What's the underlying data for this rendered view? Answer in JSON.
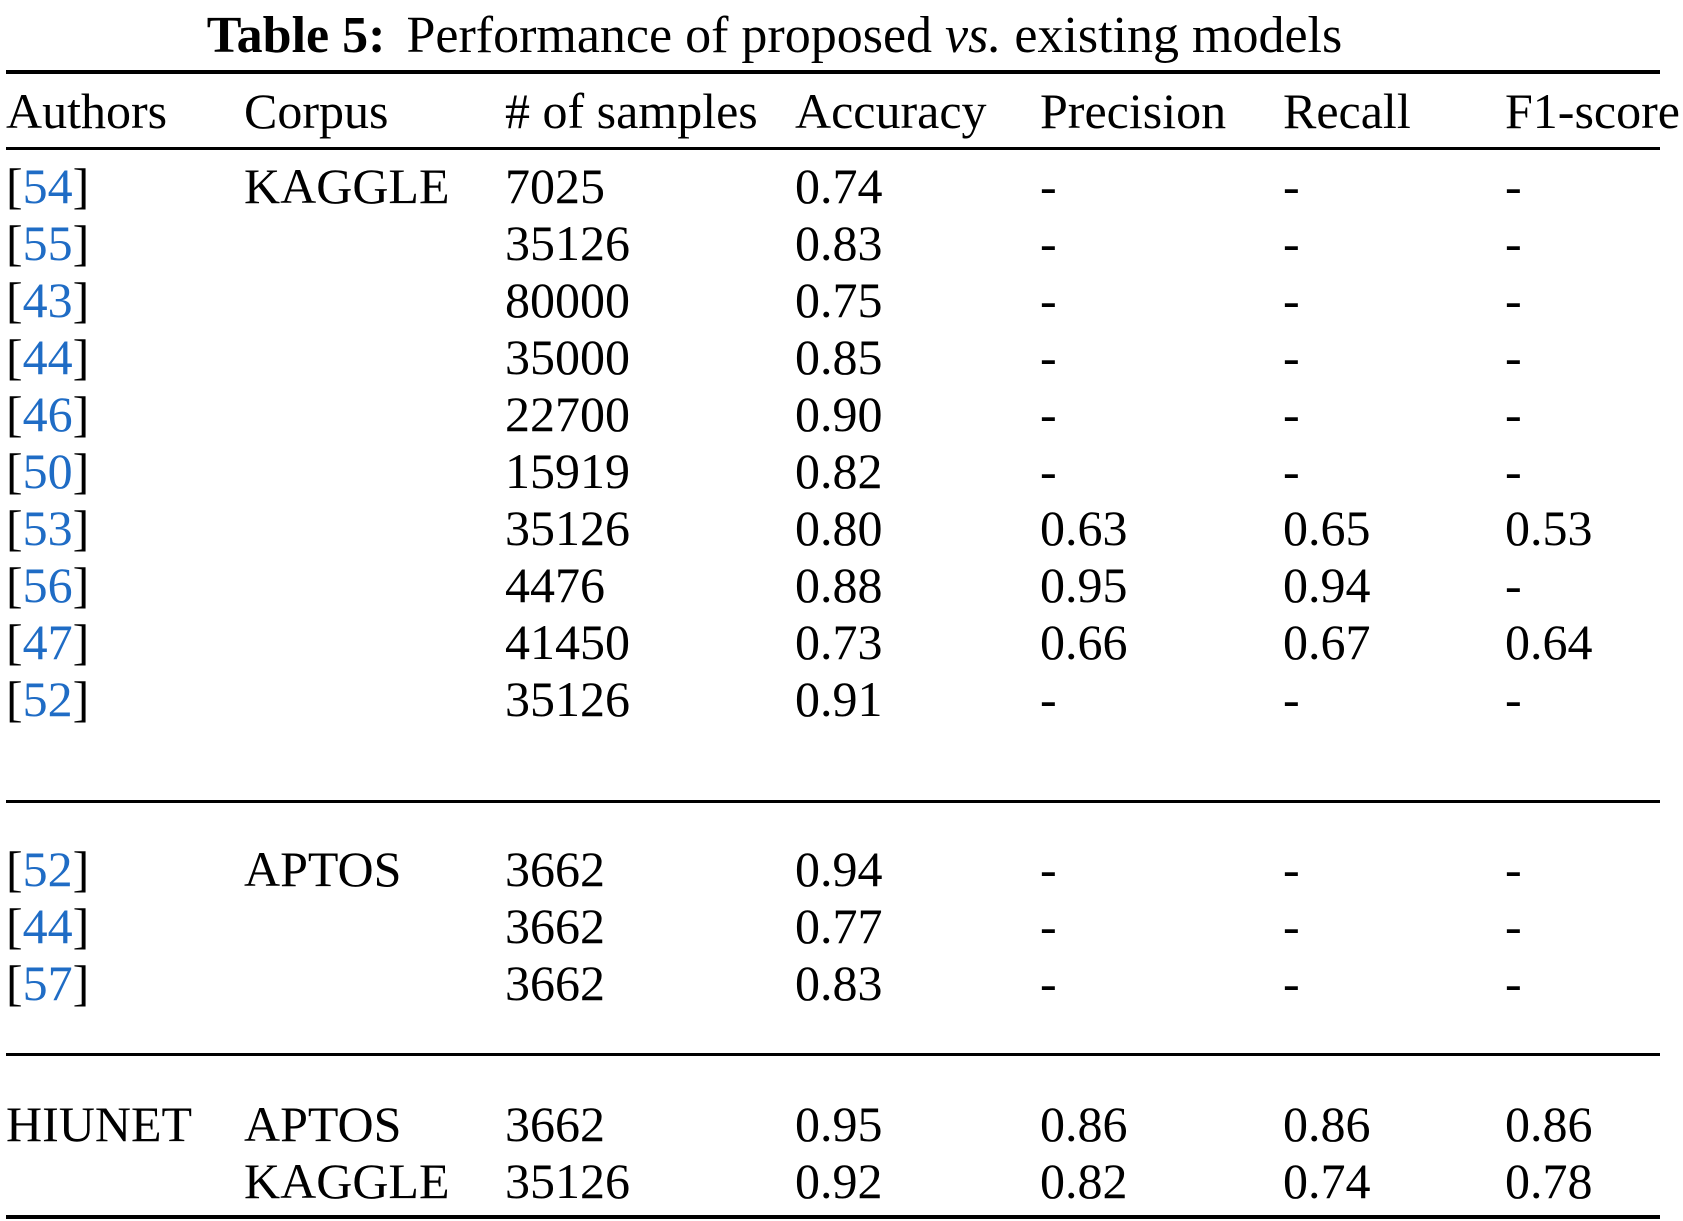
{
  "title": {
    "label": "Table 5:",
    "before_vs": "Performance of proposed",
    "vs": "vs.",
    "after_vs": "existing models"
  },
  "symbols": {
    "bracket_open": "[",
    "bracket_close": "]"
  },
  "colors": {
    "citation_blue": "#1f6cc5",
    "text": "#000000",
    "rule": "#000000",
    "background": "#ffffff"
  },
  "table": {
    "headers": [
      "Authors",
      "Corpus",
      "# of samples",
      "Accuracy",
      "Precision",
      "Recall",
      "F1-score"
    ],
    "groups": [
      {
        "rows": [
          {
            "ref": "54",
            "corpus": "KAGGLE",
            "samples": "7025",
            "accuracy": "0.74",
            "precision": "-",
            "recall": "-",
            "f1": "-"
          },
          {
            "ref": "55",
            "corpus": "",
            "samples": "35126",
            "accuracy": "0.83",
            "precision": "-",
            "recall": "-",
            "f1": "-"
          },
          {
            "ref": "43",
            "corpus": "",
            "samples": "80000",
            "accuracy": "0.75",
            "precision": "-",
            "recall": "-",
            "f1": "-"
          },
          {
            "ref": "44",
            "corpus": "",
            "samples": "35000",
            "accuracy": "0.85",
            "precision": "-",
            "recall": "-",
            "f1": "-"
          },
          {
            "ref": "46",
            "corpus": "",
            "samples": "22700",
            "accuracy": "0.90",
            "precision": "-",
            "recall": "-",
            "f1": "-"
          },
          {
            "ref": "50",
            "corpus": "",
            "samples": "15919",
            "accuracy": "0.82",
            "precision": "-",
            "recall": "-",
            "f1": "-"
          },
          {
            "ref": "53",
            "corpus": "",
            "samples": "35126",
            "accuracy": "0.80",
            "precision": "0.63",
            "recall": "0.65",
            "f1": "0.53"
          },
          {
            "ref": "56",
            "corpus": "",
            "samples": "4476",
            "accuracy": "0.88",
            "precision": "0.95",
            "recall": "0.94",
            "f1": "-"
          },
          {
            "ref": "47",
            "corpus": "",
            "samples": "41450",
            "accuracy": "0.73",
            "precision": "0.66",
            "recall": "0.67",
            "f1": "0.64"
          },
          {
            "ref": "52",
            "corpus": "",
            "samples": "35126",
            "accuracy": "0.91",
            "precision": "-",
            "recall": "-",
            "f1": "-"
          }
        ]
      },
      {
        "rows": [
          {
            "ref": "52",
            "corpus": "APTOS",
            "samples": "3662",
            "accuracy": "0.94",
            "precision": "-",
            "recall": "-",
            "f1": "-"
          },
          {
            "ref": "44",
            "corpus": "",
            "samples": "3662",
            "accuracy": "0.77",
            "precision": "-",
            "recall": "-",
            "f1": "-"
          },
          {
            "ref": "57",
            "corpus": "",
            "samples": "3662",
            "accuracy": "0.83",
            "precision": "-",
            "recall": "-",
            "f1": "-"
          }
        ]
      },
      {
        "rows": [
          {
            "author": "HIUNET",
            "corpus": "APTOS",
            "samples": "3662",
            "accuracy": "0.95",
            "precision": "0.86",
            "recall": "0.86",
            "f1": "0.86"
          },
          {
            "author": "",
            "corpus": "KAGGLE",
            "samples": "35126",
            "accuracy": "0.92",
            "precision": "0.82",
            "recall": "0.74",
            "f1": "0.78"
          }
        ]
      }
    ]
  }
}
